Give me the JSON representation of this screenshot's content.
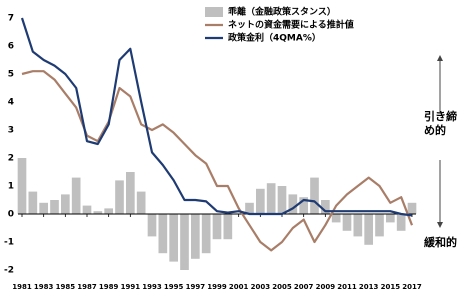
{
  "chart_data": {
    "type": "combo",
    "x": [
      1981,
      1982,
      1983,
      1984,
      1985,
      1986,
      1987,
      1988,
      1989,
      1990,
      1991,
      1992,
      1993,
      1994,
      1995,
      1996,
      1997,
      1998,
      1999,
      2000,
      2001,
      2002,
      2003,
      2004,
      2005,
      2006,
      2007,
      2008,
      2009,
      2010,
      2011,
      2012,
      2013,
      2014,
      2015,
      2016,
      2017
    ],
    "xlim": [
      1981,
      2017
    ],
    "xticks": [
      1981,
      1983,
      1985,
      1987,
      1989,
      1991,
      1993,
      1995,
      1997,
      1999,
      2001,
      2003,
      2005,
      2007,
      2009,
      2011,
      2013,
      2015,
      2017
    ],
    "ylim": [
      -2,
      7
    ],
    "yticks": [
      -2,
      -1,
      0,
      1,
      2,
      3,
      4,
      5,
      6,
      7
    ],
    "series": [
      {
        "name": "乖離（金融政策スタンス）",
        "type": "bar",
        "color": "#bfbfbf",
        "values": [
          2.0,
          0.8,
          0.4,
          0.5,
          0.7,
          1.3,
          0.3,
          0.1,
          0.2,
          1.2,
          1.5,
          0.8,
          -0.8,
          -1.4,
          -1.7,
          -2.0,
          -1.6,
          -1.4,
          -0.9,
          -0.9,
          0.0,
          0.4,
          0.9,
          1.1,
          1.0,
          0.7,
          0.6,
          1.3,
          0.5,
          -0.3,
          -0.6,
          -0.8,
          -1.1,
          -0.8,
          -0.3,
          -0.6,
          0.4
        ]
      },
      {
        "name": "ネットの資金需要による推計値",
        "type": "line",
        "color": "#a97e68",
        "values": [
          5.0,
          5.1,
          5.1,
          4.8,
          4.3,
          3.8,
          2.8,
          2.6,
          3.3,
          4.5,
          4.2,
          3.2,
          3.0,
          3.2,
          2.9,
          2.5,
          2.1,
          1.8,
          1.0,
          1.0,
          0.2,
          -0.4,
          -1.0,
          -1.3,
          -1.0,
          -0.5,
          -0.2,
          -1.0,
          -0.4,
          0.3,
          0.7,
          1.0,
          1.3,
          1.0,
          0.4,
          0.6,
          -0.4
        ]
      },
      {
        "name": "政策金利（4QMA%）",
        "type": "line",
        "color": "#1f3b73",
        "values": [
          7.0,
          5.8,
          5.5,
          5.3,
          5.0,
          4.5,
          2.6,
          2.5,
          3.2,
          5.5,
          5.9,
          4.0,
          2.2,
          1.75,
          1.2,
          0.5,
          0.5,
          0.45,
          0.1,
          0.05,
          0.1,
          0.0,
          0.0,
          0.0,
          0.0,
          0.2,
          0.5,
          0.45,
          0.1,
          0.1,
          0.1,
          0.1,
          0.1,
          0.1,
          0.1,
          0.0,
          -0.05
        ]
      }
    ],
    "annotations": [
      "引き締め的",
      "緩和的"
    ]
  }
}
